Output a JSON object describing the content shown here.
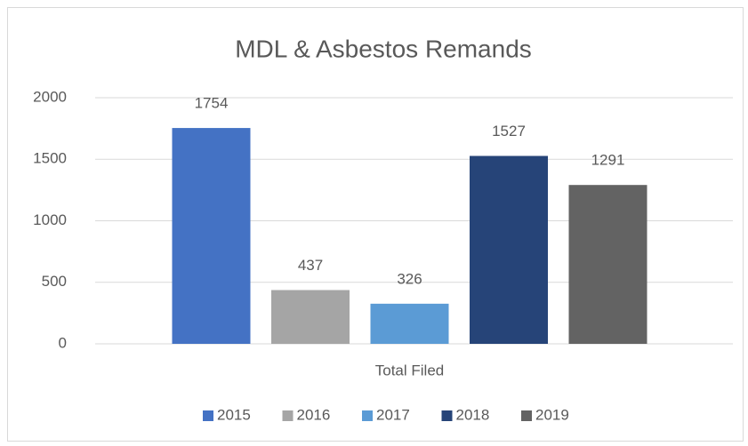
{
  "chart_data": {
    "type": "bar",
    "title": "MDL & Asbestos Remands",
    "categories": [
      "Total Filed"
    ],
    "series": [
      {
        "name": "2015",
        "color": "#4472c4",
        "values": [
          1754
        ]
      },
      {
        "name": "2016",
        "color": "#a5a5a5",
        "values": [
          437
        ]
      },
      {
        "name": "2017",
        "color": "#5b9bd5",
        "values": [
          326
        ]
      },
      {
        "name": "2018",
        "color": "#264478",
        "values": [
          1527
        ]
      },
      {
        "name": "2019",
        "color": "#636363",
        "values": [
          1291
        ]
      }
    ],
    "ylim": [
      0,
      2000
    ],
    "yticks": [
      0,
      500,
      1000,
      1500,
      2000
    ],
    "grid": true,
    "legend": "bottom"
  }
}
